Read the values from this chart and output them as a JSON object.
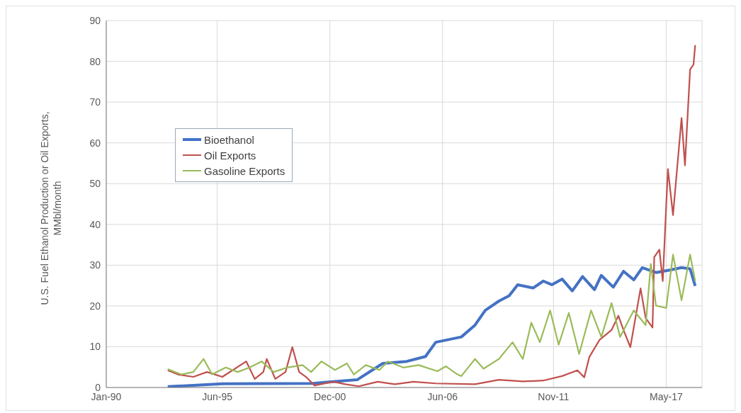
{
  "chart_data": {
    "type": "line",
    "ylabel": "U.S. Fuel Ethanol Production or Oil Exports,\nMMbl/month",
    "xlim": [
      "1990-01",
      "2019-02"
    ],
    "xticks": [
      {
        "value": "1990-01",
        "label": "Jan-90"
      },
      {
        "value": "1995-06",
        "label": "Jun-95"
      },
      {
        "value": "2000-12",
        "label": "Dec-00"
      },
      {
        "value": "2006-06",
        "label": "Jun-06"
      },
      {
        "value": "2011-11",
        "label": "Nov-11"
      },
      {
        "value": "2017-05",
        "label": "May-17"
      }
    ],
    "ylim": [
      0,
      90
    ],
    "yticks": [
      0,
      10,
      20,
      30,
      40,
      50,
      60,
      70,
      80,
      90
    ],
    "grid": true,
    "legend": "left",
    "marker": "none",
    "line_style": "solid",
    "series": [
      {
        "name": "Bioethanol",
        "color": "#4472c4",
        "x": [
          "1993-01",
          "1995-09",
          "2000-02",
          "2000-10",
          "2002-04",
          "2003-07",
          "2004-09",
          "2005-08",
          "2006-02",
          "2007-05",
          "2008-01",
          "2008-07",
          "2009-03",
          "2009-09",
          "2010-02",
          "2010-11",
          "2011-05",
          "2011-10",
          "2012-04",
          "2012-10",
          "2013-04",
          "2013-11",
          "2014-03",
          "2014-10",
          "2015-04",
          "2015-10",
          "2016-03",
          "2016-11",
          "2017-07",
          "2018-02",
          "2018-07",
          "2018-10"
        ],
        "values": [
          0.2,
          0.9,
          1.0,
          1.3,
          1.9,
          5.9,
          6.4,
          7.6,
          11.1,
          12.4,
          15.3,
          18.9,
          21.2,
          22.5,
          25.2,
          24.4,
          26.1,
          25.2,
          26.6,
          23.7,
          27.2,
          24.0,
          27.5,
          24.6,
          28.5,
          26.4,
          29.4,
          28.2,
          28.8,
          29.4,
          29.1,
          24.9
        ]
      },
      {
        "name": "Oil Exports",
        "color": "#c0504d",
        "x": [
          "1993-01",
          "1993-07",
          "1994-04",
          "1994-12",
          "1995-09",
          "1996-11",
          "1997-04",
          "1997-09",
          "1997-11",
          "1998-04",
          "1998-10",
          "1999-02",
          "1999-06",
          "1999-10",
          "2000-03",
          "2001-02",
          "2001-09",
          "2002-05",
          "2003-04",
          "2004-02",
          "2005-01",
          "2006-02",
          "2008-01",
          "2009-03",
          "2010-05",
          "2011-05",
          "2012-04",
          "2013-01",
          "2013-05",
          "2013-08",
          "2014-02",
          "2014-09",
          "2015-01",
          "2015-04",
          "2015-08",
          "2015-10",
          "2016-02",
          "2016-05",
          "2016-09",
          "2016-10",
          "2017-01",
          "2017-03",
          "2017-06",
          "2017-09",
          "2018-02",
          "2018-04",
          "2018-07",
          "2018-09",
          "2018-10"
        ],
        "values": [
          4.2,
          3.2,
          2.6,
          3.8,
          2.6,
          6.4,
          2.1,
          3.8,
          7.0,
          2.1,
          3.8,
          9.9,
          3.8,
          2.6,
          0.5,
          1.4,
          0.8,
          0.3,
          1.4,
          0.8,
          1.4,
          1.0,
          0.8,
          1.9,
          1.5,
          1.7,
          2.8,
          4.2,
          2.5,
          7.5,
          11.7,
          14.1,
          17.6,
          14.1,
          9.9,
          14.7,
          24.3,
          17.0,
          14.7,
          32.0,
          33.8,
          26.1,
          53.6,
          42.3,
          66.1,
          54.5,
          78.0,
          79.2,
          84.0
        ]
      },
      {
        "name": "Gasoline Exports",
        "color": "#9bbb59",
        "x": [
          "1993-01",
          "1993-09",
          "1994-04",
          "1994-10",
          "1995-03",
          "1995-11",
          "1996-06",
          "1997-01",
          "1997-08",
          "1998-03",
          "1998-11",
          "1999-08",
          "2000-01",
          "2000-07",
          "2001-03",
          "2001-10",
          "2002-02",
          "2002-09",
          "2003-05",
          "2003-10",
          "2004-07",
          "2005-04",
          "2006-03",
          "2006-08",
          "2007-02",
          "2007-05",
          "2008-01",
          "2008-06",
          "2009-03",
          "2009-11",
          "2010-05",
          "2010-10",
          "2011-03",
          "2011-09",
          "2012-02",
          "2012-08",
          "2013-02",
          "2013-09",
          "2014-03",
          "2014-09",
          "2015-02",
          "2015-10",
          "2016-05",
          "2016-08",
          "2016-11",
          "2017-05",
          "2017-09",
          "2018-02",
          "2018-07",
          "2018-10"
        ],
        "values": [
          4.5,
          3.2,
          3.8,
          7.0,
          3.2,
          4.9,
          3.8,
          4.9,
          6.4,
          3.8,
          4.9,
          5.5,
          3.8,
          6.4,
          4.3,
          5.9,
          3.2,
          5.5,
          4.3,
          6.4,
          4.9,
          5.5,
          4.0,
          5.2,
          3.4,
          2.8,
          7.0,
          4.6,
          7.0,
          11.1,
          7.0,
          15.9,
          11.1,
          18.9,
          10.5,
          18.3,
          8.2,
          18.9,
          12.4,
          20.7,
          12.4,
          18.9,
          15.3,
          30.3,
          20.1,
          19.5,
          32.6,
          21.4,
          32.6,
          26.1
        ]
      }
    ]
  }
}
